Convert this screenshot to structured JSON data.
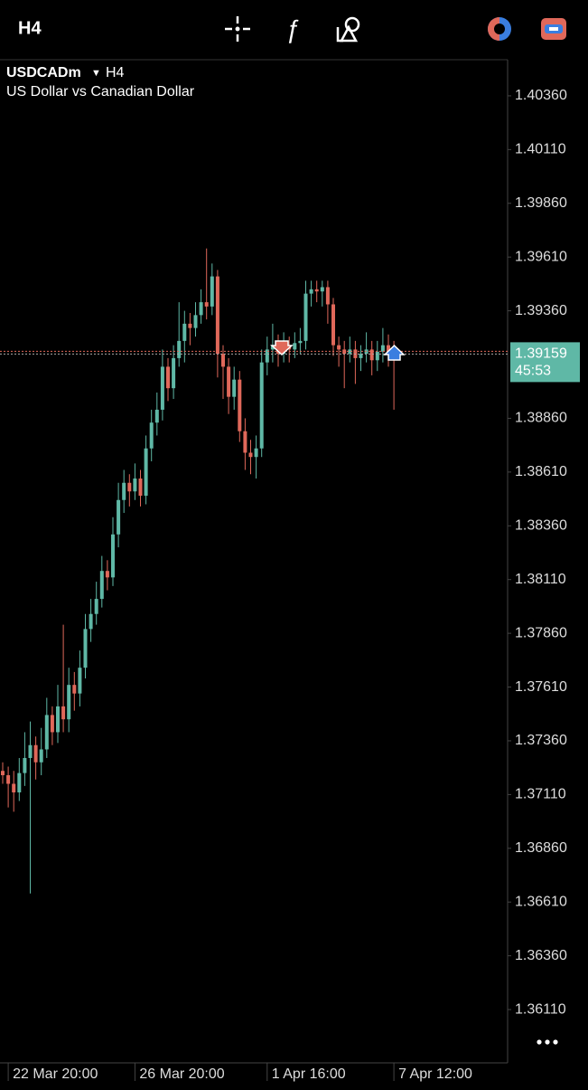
{
  "toolbar": {
    "timeframe": "H4"
  },
  "chart_data": {
    "type": "candlestick",
    "symbol": "USDCADm",
    "timeframe": "H4",
    "subtitle": "US Dollar vs Canadian Dollar",
    "countdown": "45:53",
    "up_color": "#5fb8a6",
    "down_color": "#e0685a",
    "categories": [
      null,
      "22 Mar 20:00",
      null,
      null,
      null,
      null,
      null,
      null,
      null,
      null,
      null,
      null,
      null,
      null,
      null,
      null,
      null,
      null,
      null,
      null,
      null,
      null,
      null,
      null,
      "26 Mar 20:00",
      null,
      null,
      null,
      null,
      null,
      null,
      null,
      null,
      null,
      null,
      null,
      null,
      null,
      null,
      null,
      null,
      null,
      null,
      null,
      null,
      null,
      null,
      null,
      "1 Apr 16:00",
      null,
      null,
      null,
      null,
      null,
      null,
      null,
      null,
      null,
      null,
      null,
      null,
      null,
      null,
      null,
      null,
      null,
      null,
      null,
      null,
      null,
      null,
      "7 Apr 12:00"
    ],
    "open": [
      1.3722,
      1.372,
      1.3716,
      1.3712,
      1.3721,
      1.3728,
      1.3734,
      1.3726,
      1.3732,
      1.3748,
      1.374,
      1.3752,
      1.3746,
      1.3762,
      1.3758,
      1.377,
      1.3788,
      1.3795,
      1.3802,
      1.3815,
      1.3812,
      1.3832,
      1.3848,
      1.3856,
      1.3852,
      1.3858,
      1.385,
      1.3872,
      1.3884,
      1.389,
      1.391,
      1.39,
      1.3914,
      1.3922,
      1.393,
      1.3928,
      1.3934,
      1.394,
      1.3938,
      1.3952,
      1.3916,
      1.391,
      1.3896,
      1.3904,
      1.388,
      1.387,
      1.3868,
      1.3872,
      1.3912,
      1.3918,
      1.392,
      1.3916,
      1.392,
      1.3918,
      1.3921,
      1.3922,
      1.3944,
      1.3946,
      1.3945,
      1.3947,
      1.3939,
      1.392,
      1.3918,
      1.3916,
      1.3918,
      1.3914,
      1.3916,
      1.3918,
      1.3913,
      1.3917,
      1.392,
      1.3916
    ],
    "high": [
      1.3726,
      1.3724,
      1.3722,
      1.3728,
      1.374,
      1.3745,
      1.3738,
      1.3742,
      1.3756,
      1.3752,
      1.3762,
      1.379,
      1.377,
      1.3768,
      1.3778,
      1.3795,
      1.3802,
      1.381,
      1.3822,
      1.382,
      1.384,
      1.3856,
      1.3862,
      1.386,
      1.3865,
      1.3862,
      1.3878,
      1.389,
      1.3898,
      1.3918,
      1.3914,
      1.392,
      1.394,
      1.3936,
      1.3935,
      1.394,
      1.3946,
      1.3965,
      1.3958,
      1.3955,
      1.392,
      1.3914,
      1.391,
      1.3908,
      1.3886,
      1.3876,
      1.3878,
      1.3918,
      1.3924,
      1.393,
      1.3925,
      1.3926,
      1.3924,
      1.3926,
      1.3928,
      1.395,
      1.395,
      1.395,
      1.395,
      1.395,
      1.3942,
      1.3924,
      1.3922,
      1.3924,
      1.3922,
      1.392,
      1.3926,
      1.3922,
      1.3922,
      1.3928,
      1.3925,
      1.3922
    ],
    "low": [
      1.3716,
      1.3705,
      1.3703,
      1.3708,
      1.3715,
      1.3665,
      1.3718,
      1.372,
      1.3728,
      1.3734,
      1.3735,
      1.374,
      1.374,
      1.375,
      1.3752,
      1.3765,
      1.3782,
      1.379,
      1.3798,
      1.3806,
      1.3808,
      1.3826,
      1.3842,
      1.3845,
      1.3848,
      1.3845,
      1.3846,
      1.3866,
      1.3878,
      1.3885,
      1.3894,
      1.3895,
      1.391,
      1.3912,
      1.392,
      1.3924,
      1.393,
      1.3932,
      1.3934,
      1.3905,
      1.3895,
      1.3888,
      1.389,
      1.3875,
      1.3862,
      1.386,
      1.3858,
      1.3868,
      1.3906,
      1.3912,
      1.391,
      1.3912,
      1.3912,
      1.3914,
      1.3916,
      1.3918,
      1.3938,
      1.394,
      1.3938,
      1.393,
      1.3915,
      1.391,
      1.39,
      1.3912,
      1.3902,
      1.3908,
      1.3912,
      1.3906,
      1.3908,
      1.3912,
      1.391,
      1.389
    ],
    "close": [
      1.372,
      1.3716,
      1.3712,
      1.3721,
      1.3728,
      1.3734,
      1.3726,
      1.3732,
      1.3748,
      1.374,
      1.3752,
      1.3746,
      1.3762,
      1.3758,
      1.377,
      1.3788,
      1.3795,
      1.3802,
      1.3815,
      1.3812,
      1.3832,
      1.3848,
      1.3856,
      1.3852,
      1.3858,
      1.385,
      1.3872,
      1.3884,
      1.389,
      1.391,
      1.39,
      1.3914,
      1.3922,
      1.393,
      1.3928,
      1.3934,
      1.394,
      1.3938,
      1.3952,
      1.3916,
      1.391,
      1.3896,
      1.3904,
      1.388,
      1.387,
      1.3868,
      1.3872,
      1.3912,
      1.3918,
      1.392,
      1.3916,
      1.392,
      1.3918,
      1.3921,
      1.3922,
      1.3944,
      1.3946,
      1.3945,
      1.3947,
      1.3939,
      1.392,
      1.3918,
      1.3916,
      1.3918,
      1.3914,
      1.3916,
      1.3918,
      1.3913,
      1.3917,
      1.392,
      1.3916,
      1.39159
    ],
    "ylim": [
      1.35862,
      1.40528
    ],
    "yticks": [
      {
        "value": 1.4036,
        "label": "1.40360"
      },
      {
        "value": 1.4011,
        "label": "1.40110"
      },
      {
        "value": 1.3986,
        "label": "1.39860"
      },
      {
        "value": 1.3961,
        "label": "1.39610"
      },
      {
        "value": 1.3936,
        "label": "1.39360"
      },
      {
        "value": 1.3886,
        "label": "1.38860"
      },
      {
        "value": 1.3861,
        "label": "1.38610"
      },
      {
        "value": 1.3836,
        "label": "1.38360"
      },
      {
        "value": 1.3811,
        "label": "1.38110"
      },
      {
        "value": 1.3786,
        "label": "1.37860"
      },
      {
        "value": 1.3761,
        "label": "1.37610"
      },
      {
        "value": 1.3736,
        "label": "1.37360"
      },
      {
        "value": 1.3711,
        "label": "1.37110"
      },
      {
        "value": 1.3686,
        "label": "1.36860"
      },
      {
        "value": 1.3661,
        "label": "1.36610"
      },
      {
        "value": 1.3636,
        "label": "1.36360"
      },
      {
        "value": 1.3611,
        "label": "1.36110"
      }
    ]
  }
}
